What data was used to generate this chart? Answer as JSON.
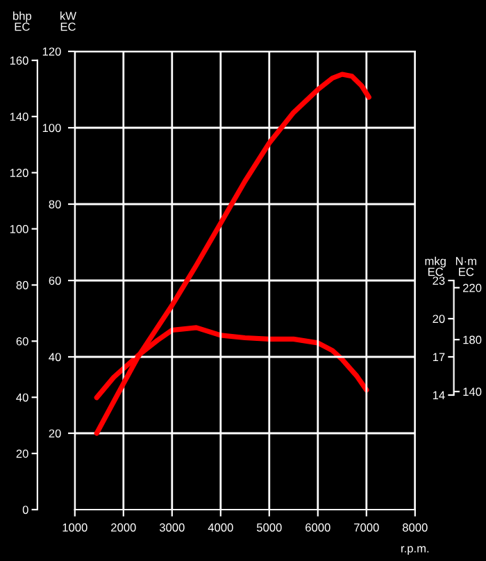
{
  "chart_data": [
    {
      "type": "line",
      "xlabel": "r.p.m.",
      "ylabel": "kW\nEC",
      "y2label": "bhp\nEC",
      "xlim": [
        1000,
        8000
      ],
      "xticks": [
        1000,
        2000,
        3000,
        4000,
        5000,
        6000,
        7000,
        8000
      ],
      "ylim": [
        0,
        120
      ],
      "yticks": [
        20,
        40,
        60,
        80,
        100,
        120
      ],
      "y2lim": [
        0,
        163.2
      ],
      "y2ticks": [
        0,
        20,
        40,
        60,
        80,
        100,
        120,
        140,
        160
      ],
      "grid": true,
      "series": [
        {
          "color": "#ff0000",
          "x": [
            1450,
            2000,
            2300,
            3000,
            3500,
            4000,
            4500,
            5000,
            5500,
            6000,
            6300,
            6500,
            6700,
            6900,
            7050
          ],
          "values": [
            20,
            33,
            40,
            53.5,
            64,
            75,
            86,
            96,
            104,
            110,
            113,
            114,
            113.5,
            111,
            108
          ]
        }
      ]
    },
    {
      "type": "line",
      "ylabel": "mkg\nEC",
      "y2label": "N·m\nEC",
      "tick_labels": "y",
      "xlim": [
        1000,
        8000
      ],
      "ylim": [
        5,
        41
      ],
      "yticks": [
        14,
        17,
        20,
        23
      ],
      "y2lim": [
        49.03,
        402.07
      ],
      "y2ticks": [
        140,
        180,
        220
      ],
      "series": [
        {
          "color": "#ff0000",
          "x": [
            1450,
            1800,
            2300,
            2700,
            3000,
            3500,
            4000,
            4500,
            5000,
            5500,
            6000,
            6300,
            6500,
            6800,
            7000
          ],
          "values": [
            13.8,
            15.4,
            17.1,
            18.3,
            19.1,
            19.3,
            18.7,
            18.5,
            18.4,
            18.4,
            18.1,
            17.5,
            16.8,
            15.5,
            14.4
          ]
        }
      ]
    }
  ]
}
